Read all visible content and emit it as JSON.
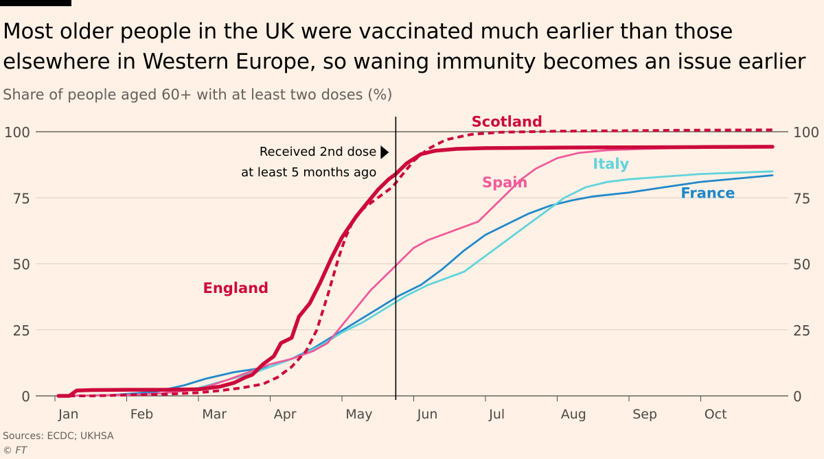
{
  "header": {
    "title": "Most older people in the UK were vaccinated much earlier than those elsewhere in Western Europe, so waning immunity becomes an issue earlier",
    "subtitle": "Share of people aged 60+ with at least two doses (%)"
  },
  "footer": {
    "sources": "Sources: ECDC; UKHSA",
    "copyright": "© FT"
  },
  "colors": {
    "background": "#fff1e5",
    "england": "#cc0a3d",
    "scotland": "#cc0a3d",
    "spain": "#f05a9a",
    "italy": "#5fd4dd",
    "france": "#1f88cc",
    "grid": "#d9cdc3",
    "axis": "#33302e"
  },
  "chart_data": {
    "type": "line",
    "x_unit": "2021 month (fractional, 1 = 1 Jan)",
    "xlim": [
      1,
      11
    ],
    "ylim": [
      0,
      100
    ],
    "y_ticks": [
      0,
      25,
      50,
      75,
      100
    ],
    "x_tick_labels": [
      "Jan",
      "Feb",
      "Mar",
      "Apr",
      "May",
      "Jun",
      "Jul",
      "Aug",
      "Sep",
      "Oct"
    ],
    "annotation": {
      "x": 5.75,
      "lines": [
        "Received 2nd dose",
        "at least 5 months ago"
      ]
    },
    "series": [
      {
        "name": "England",
        "key": "england",
        "label": "England",
        "style": "solid-thick",
        "points": [
          [
            1.05,
            0
          ],
          [
            1.2,
            0
          ],
          [
            1.3,
            2
          ],
          [
            1.5,
            2.2
          ],
          [
            2,
            2.3
          ],
          [
            2.5,
            2.3
          ],
          [
            3,
            2.5
          ],
          [
            3.3,
            3.5
          ],
          [
            3.5,
            5
          ],
          [
            3.65,
            7
          ],
          [
            3.75,
            8
          ],
          [
            3.9,
            12
          ],
          [
            4.05,
            15
          ],
          [
            4.15,
            20
          ],
          [
            4.3,
            22
          ],
          [
            4.4,
            30
          ],
          [
            4.55,
            35
          ],
          [
            4.7,
            43
          ],
          [
            4.85,
            52
          ],
          [
            5.0,
            60
          ],
          [
            5.2,
            68
          ],
          [
            5.35,
            73
          ],
          [
            5.5,
            78
          ],
          [
            5.65,
            82
          ],
          [
            5.75,
            84
          ],
          [
            5.9,
            88
          ],
          [
            6.1,
            91.5
          ],
          [
            6.3,
            92.8
          ],
          [
            6.6,
            93.5
          ],
          [
            7.0,
            93.8
          ],
          [
            8,
            94
          ],
          [
            9,
            94.1
          ],
          [
            10,
            94.2
          ],
          [
            11,
            94.3
          ]
        ]
      },
      {
        "name": "Scotland",
        "key": "scotland",
        "label": "Scotland",
        "style": "dashed-thick",
        "points": [
          [
            1.05,
            0
          ],
          [
            1.5,
            0
          ],
          [
            2,
            0.3
          ],
          [
            2.5,
            0.6
          ],
          [
            3,
            1.2
          ],
          [
            3.3,
            2
          ],
          [
            3.6,
            3
          ],
          [
            3.9,
            4.5
          ],
          [
            4.1,
            7
          ],
          [
            4.3,
            11
          ],
          [
            4.5,
            17
          ],
          [
            4.65,
            25
          ],
          [
            4.8,
            38
          ],
          [
            4.95,
            52
          ],
          [
            5.05,
            60
          ],
          [
            5.15,
            66
          ],
          [
            5.3,
            71
          ],
          [
            5.5,
            75
          ],
          [
            5.7,
            79
          ],
          [
            5.85,
            84
          ],
          [
            6.0,
            89
          ],
          [
            6.2,
            93.5
          ],
          [
            6.45,
            97
          ],
          [
            6.8,
            99
          ],
          [
            7.2,
            99.8
          ],
          [
            8,
            100.2
          ],
          [
            9,
            100.4
          ],
          [
            10,
            100.6
          ],
          [
            11,
            100.7
          ]
        ]
      },
      {
        "name": "Spain",
        "key": "spain",
        "label": "Spain",
        "style": "solid",
        "points": [
          [
            1.05,
            0
          ],
          [
            2,
            0.3
          ],
          [
            2.5,
            1
          ],
          [
            3,
            2.5
          ],
          [
            3.4,
            6
          ],
          [
            3.7,
            9
          ],
          [
            4.0,
            12
          ],
          [
            4.3,
            14
          ],
          [
            4.6,
            17
          ],
          [
            4.8,
            20
          ],
          [
            5.1,
            30
          ],
          [
            5.4,
            40
          ],
          [
            5.7,
            48
          ],
          [
            6.0,
            56
          ],
          [
            6.2,
            59
          ],
          [
            6.4,
            61
          ],
          [
            6.6,
            63
          ],
          [
            6.9,
            66
          ],
          [
            7.2,
            74
          ],
          [
            7.5,
            82
          ],
          [
            7.7,
            86
          ],
          [
            8.0,
            90
          ],
          [
            8.3,
            92
          ],
          [
            8.7,
            93
          ],
          [
            9.2,
            93.5
          ],
          [
            10,
            94
          ],
          [
            11,
            94.2
          ]
        ]
      },
      {
        "name": "Italy",
        "key": "italy",
        "label": "Italy",
        "style": "solid",
        "points": [
          [
            1.05,
            0
          ],
          [
            2,
            0.3
          ],
          [
            2.5,
            1
          ],
          [
            3,
            3
          ],
          [
            3.4,
            6
          ],
          [
            3.8,
            9
          ],
          [
            4.1,
            12
          ],
          [
            4.4,
            15
          ],
          [
            4.7,
            19
          ],
          [
            5.0,
            24
          ],
          [
            5.3,
            28
          ],
          [
            5.6,
            33
          ],
          [
            5.9,
            38
          ],
          [
            6.2,
            42
          ],
          [
            6.5,
            45
          ],
          [
            6.7,
            47
          ],
          [
            6.9,
            51
          ],
          [
            7.2,
            57
          ],
          [
            7.5,
            63
          ],
          [
            7.8,
            69
          ],
          [
            8.1,
            75
          ],
          [
            8.4,
            79
          ],
          [
            8.7,
            81
          ],
          [
            9.0,
            82
          ],
          [
            9.5,
            83
          ],
          [
            10,
            84
          ],
          [
            11,
            85
          ]
        ]
      },
      {
        "name": "France",
        "key": "france",
        "label": "France",
        "style": "solid",
        "points": [
          [
            1.05,
            0
          ],
          [
            1.8,
            0.3
          ],
          [
            2.4,
            1.5
          ],
          [
            2.8,
            4
          ],
          [
            3.1,
            6.5
          ],
          [
            3.5,
            9
          ],
          [
            4.0,
            11
          ],
          [
            4.3,
            14
          ],
          [
            4.6,
            18
          ],
          [
            4.9,
            23
          ],
          [
            5.2,
            28
          ],
          [
            5.5,
            33
          ],
          [
            5.8,
            38
          ],
          [
            6.1,
            42
          ],
          [
            6.4,
            48
          ],
          [
            6.7,
            55
          ],
          [
            7.0,
            61
          ],
          [
            7.3,
            65
          ],
          [
            7.6,
            69
          ],
          [
            7.9,
            72
          ],
          [
            8.2,
            74
          ],
          [
            8.5,
            75.5
          ],
          [
            9.0,
            77
          ],
          [
            9.5,
            79
          ],
          [
            10,
            81
          ],
          [
            11,
            83.5
          ]
        ]
      }
    ],
    "labels": [
      {
        "series": "england",
        "text": "England",
        "x": 3.52,
        "y": 39,
        "anchor": "middle"
      },
      {
        "series": "scotland",
        "text": "Scotland",
        "x": 7.3,
        "y": 102,
        "anchor": "middle"
      },
      {
        "series": "spain",
        "text": "Spain",
        "x": 7.27,
        "y": 79,
        "anchor": "middle"
      },
      {
        "series": "italy",
        "text": "Italy",
        "x": 8.75,
        "y": 86,
        "anchor": "middle"
      },
      {
        "series": "france",
        "text": "France",
        "x": 10.1,
        "y": 75,
        "anchor": "middle"
      }
    ]
  }
}
